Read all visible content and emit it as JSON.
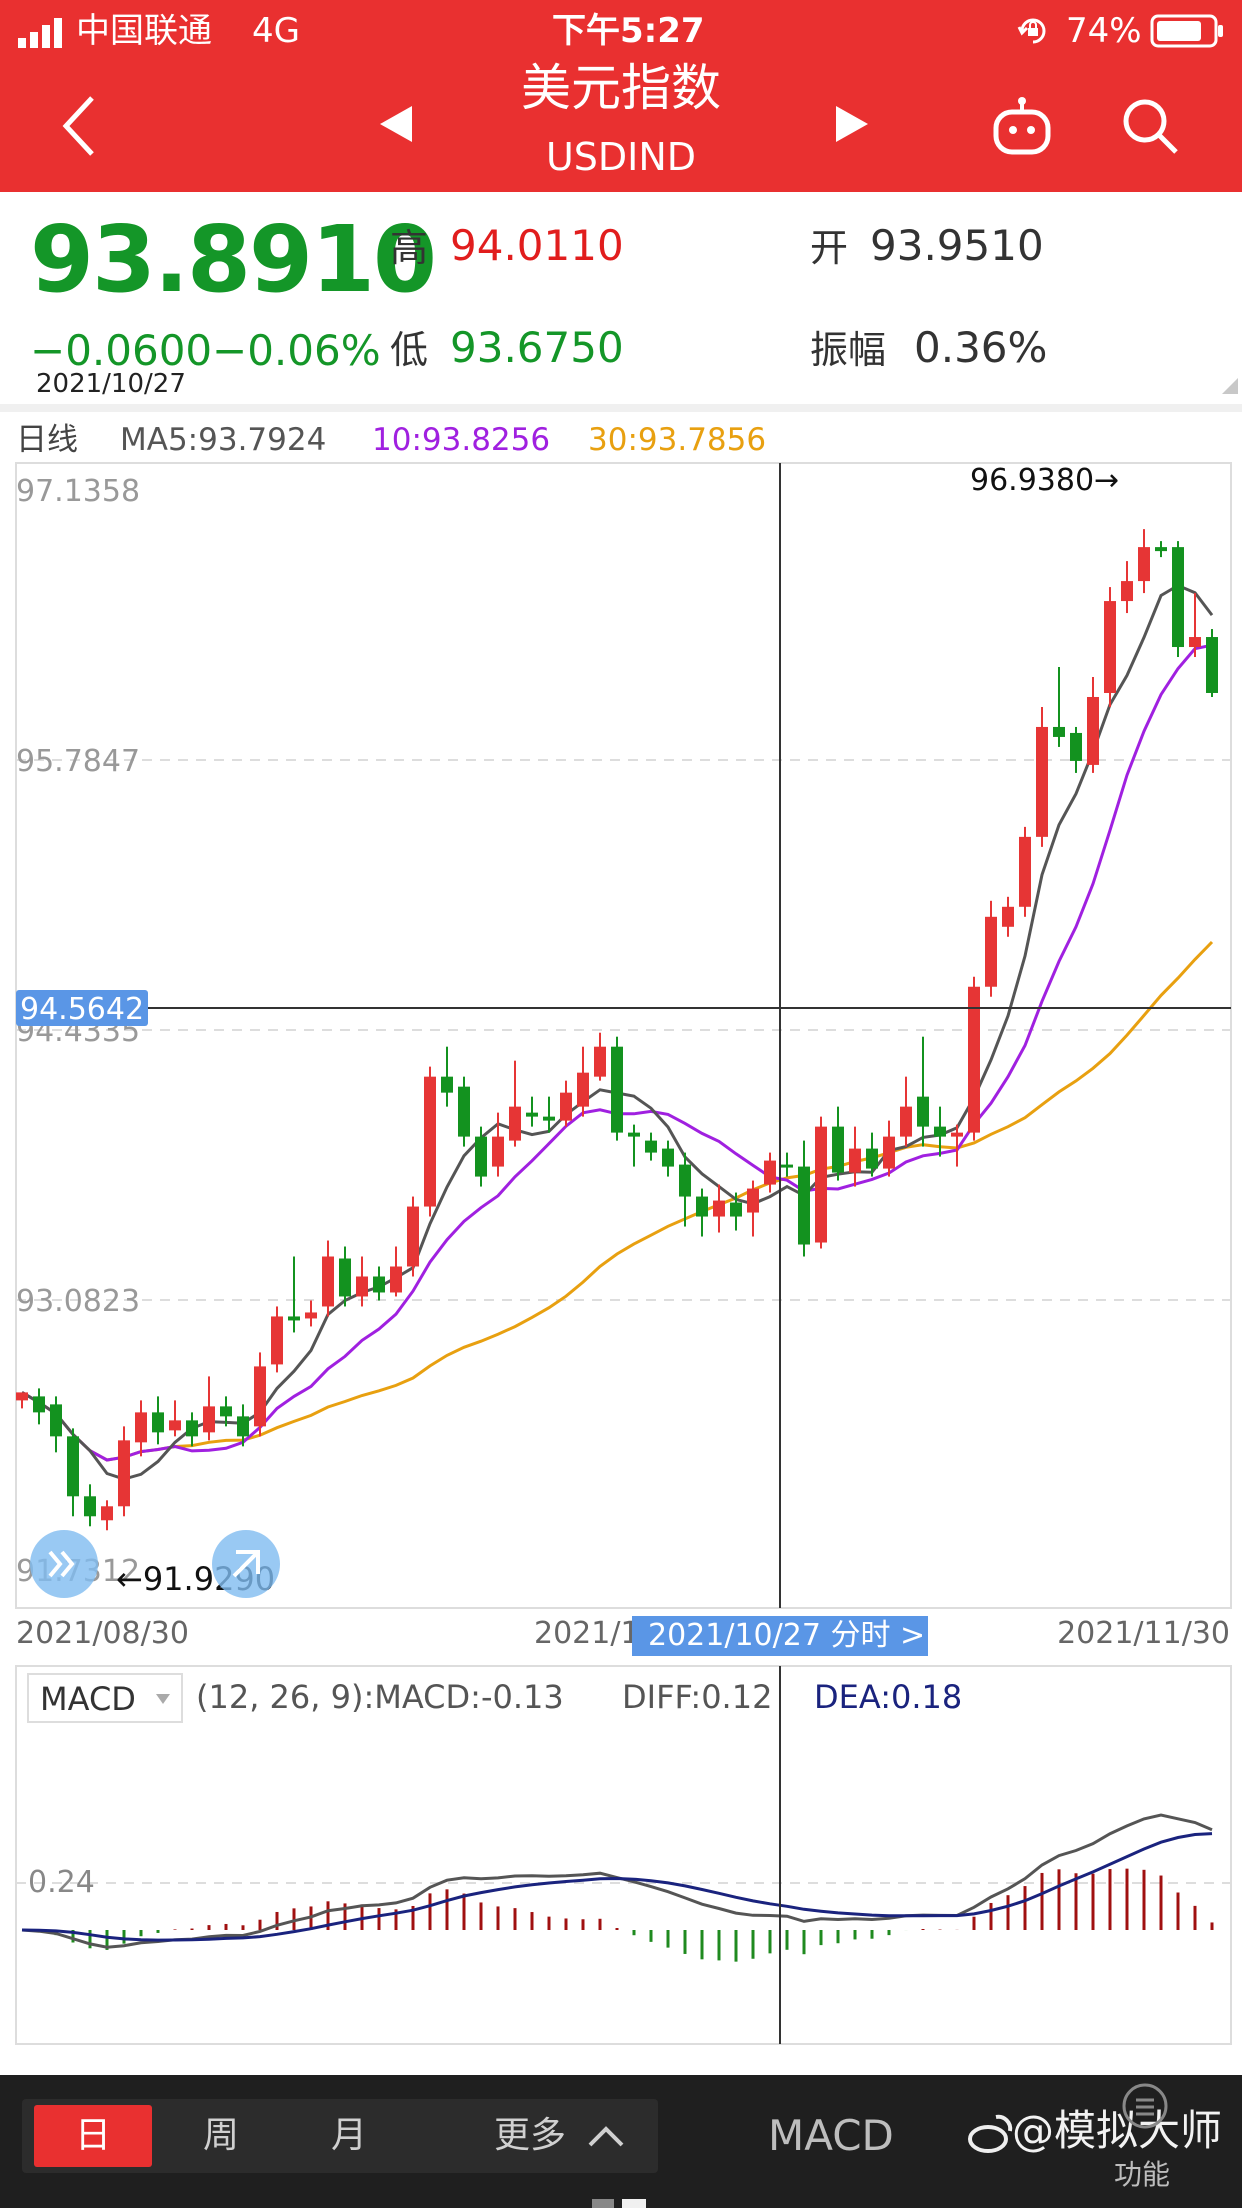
{
  "status_bar": {
    "carrier": "中国联通",
    "network": "4G",
    "time": "下午5:27",
    "battery": "74%"
  },
  "header": {
    "title": "美元指数",
    "code": "USDIND"
  },
  "quote": {
    "price": "93.8910",
    "change": "−0.0600",
    "change_pct": "−0.06%",
    "date": "2021/10/27",
    "high_label": "高",
    "high": "94.0110",
    "low_label": "低",
    "low": "93.6750",
    "open_label": "开",
    "open": "93.9510",
    "amp_label": "振幅",
    "amplitude": "0.36%"
  },
  "ma_legend": {
    "period": "日线",
    "ma5": "MA5:93.7924",
    "ma10": "10:93.8256",
    "ma30": "30:93.7856"
  },
  "price_axis": [
    "97.1358",
    "95.7847",
    "94.4335",
    "93.0823",
    "91.7312"
  ],
  "crosshair_price": "94.5642",
  "annotations": {
    "max": "96.9380→",
    "min": "←91.9290"
  },
  "date_axis": {
    "start": "2021/08/30",
    "mid": "2021/1",
    "end": "2021/11/30"
  },
  "crosshair_date": "2021/10/27 分时 >",
  "macd_legend": {
    "name": "MACD",
    "params": "(12, 26, 9):MACD:-0.13",
    "diff": "DIFF:0.12",
    "dea": "DEA:0.18"
  },
  "macd_axis": "0.24",
  "tabs": {
    "day": "日",
    "week": "周",
    "month": "月",
    "more": "更多",
    "indicator": "MACD"
  },
  "watermark": "@模拟大师",
  "function_label": "功能",
  "colors": {
    "up": "#e63535",
    "down": "#13921f",
    "ma5": "#555555",
    "ma10": "#a020e0",
    "ma30": "#e8a010",
    "header": "#e93030"
  },
  "chart_data": {
    "type": "candlestick",
    "ylim": [
      91.7312,
      97.1358
    ],
    "candles": [
      [
        92.58,
        92.62,
        92.54,
        92.59
      ],
      [
        92.6,
        92.52,
        92.46,
        92.64
      ],
      [
        92.56,
        92.4,
        92.32,
        92.6
      ],
      [
        92.4,
        92.1,
        92.0,
        92.44
      ],
      [
        92.1,
        92.0,
        91.95,
        92.16
      ],
      [
        91.98,
        92.05,
        91.93,
        92.08
      ],
      [
        92.05,
        92.38,
        92.0,
        92.45
      ],
      [
        92.37,
        92.52,
        92.3,
        92.58
      ],
      [
        92.52,
        92.42,
        92.36,
        92.6
      ],
      [
        92.43,
        92.48,
        92.4,
        92.58
      ],
      [
        92.48,
        92.4,
        92.35,
        92.52
      ],
      [
        92.42,
        92.55,
        92.38,
        92.7
      ],
      [
        92.55,
        92.5,
        92.45,
        92.6
      ],
      [
        92.5,
        92.4,
        92.35,
        92.56
      ],
      [
        92.45,
        92.75,
        92.4,
        92.82
      ],
      [
        92.76,
        93.0,
        92.72,
        93.05
      ],
      [
        93.0,
        92.98,
        92.92,
        93.3
      ],
      [
        92.99,
        93.02,
        92.95,
        93.08
      ],
      [
        93.05,
        93.3,
        93.0,
        93.38
      ],
      [
        93.29,
        93.1,
        93.05,
        93.35
      ],
      [
        93.1,
        93.2,
        93.05,
        93.3
      ],
      [
        93.2,
        93.12,
        93.08,
        93.25
      ],
      [
        93.12,
        93.25,
        93.1,
        93.35
      ],
      [
        93.25,
        93.55,
        93.2,
        93.6
      ],
      [
        93.55,
        94.2,
        93.5,
        94.25
      ],
      [
        94.2,
        94.12,
        94.05,
        94.35
      ],
      [
        94.15,
        93.9,
        93.85,
        94.2
      ],
      [
        93.9,
        93.7,
        93.65,
        93.95
      ],
      [
        93.75,
        93.9,
        93.7,
        94.02
      ],
      [
        93.88,
        94.05,
        93.85,
        94.28
      ],
      [
        94.02,
        94.0,
        93.95,
        94.1
      ],
      [
        94.0,
        93.98,
        93.92,
        94.1
      ],
      [
        93.98,
        94.12,
        93.95,
        94.18
      ],
      [
        94.05,
        94.22,
        94.0,
        94.35
      ],
      [
        94.2,
        94.35,
        94.18,
        94.42
      ],
      [
        94.35,
        93.92,
        93.88,
        94.4
      ],
      [
        93.92,
        93.9,
        93.75,
        93.96
      ],
      [
        93.88,
        93.82,
        93.78,
        93.92
      ],
      [
        93.84,
        93.75,
        93.7,
        93.88
      ],
      [
        93.76,
        93.6,
        93.45,
        93.82
      ],
      [
        93.6,
        93.5,
        93.4,
        93.64
      ],
      [
        93.5,
        93.58,
        93.42,
        93.66
      ],
      [
        93.57,
        93.5,
        93.43,
        93.62
      ],
      [
        93.52,
        93.64,
        93.4,
        93.68
      ],
      [
        93.66,
        93.78,
        93.62,
        93.82
      ],
      [
        93.76,
        93.75,
        93.7,
        93.82
      ],
      [
        93.75,
        93.36,
        93.3,
        93.88
      ],
      [
        93.37,
        93.95,
        93.34,
        94.0
      ],
      [
        93.95,
        93.72,
        93.68,
        94.05
      ],
      [
        93.72,
        93.84,
        93.65,
        93.95
      ],
      [
        93.84,
        93.74,
        93.7,
        93.92
      ],
      [
        93.74,
        93.9,
        93.7,
        93.98
      ],
      [
        93.9,
        94.05,
        93.85,
        94.2
      ],
      [
        94.1,
        93.95,
        93.85,
        94.4
      ],
      [
        93.95,
        93.9,
        93.8,
        94.05
      ],
      [
        93.9,
        93.92,
        93.75,
        93.96
      ],
      [
        93.92,
        94.65,
        93.88,
        94.7
      ],
      [
        94.65,
        95.0,
        94.6,
        95.08
      ],
      [
        94.95,
        95.05,
        94.9,
        95.1
      ],
      [
        95.05,
        95.4,
        95.0,
        95.45
      ],
      [
        95.4,
        95.95,
        95.35,
        96.05
      ],
      [
        95.95,
        95.9,
        95.85,
        96.25
      ],
      [
        95.92,
        95.78,
        95.72,
        95.95
      ],
      [
        95.76,
        96.1,
        95.72,
        96.2
      ],
      [
        96.12,
        96.58,
        96.05,
        96.65
      ],
      [
        96.58,
        96.68,
        96.52,
        96.78
      ],
      [
        96.68,
        96.85,
        96.62,
        96.94
      ],
      [
        96.85,
        96.83,
        96.8,
        96.88
      ],
      [
        96.85,
        96.35,
        96.3,
        96.88
      ],
      [
        96.35,
        96.4,
        96.3,
        96.62
      ],
      [
        96.4,
        96.12,
        96.1,
        96.44
      ]
    ]
  }
}
